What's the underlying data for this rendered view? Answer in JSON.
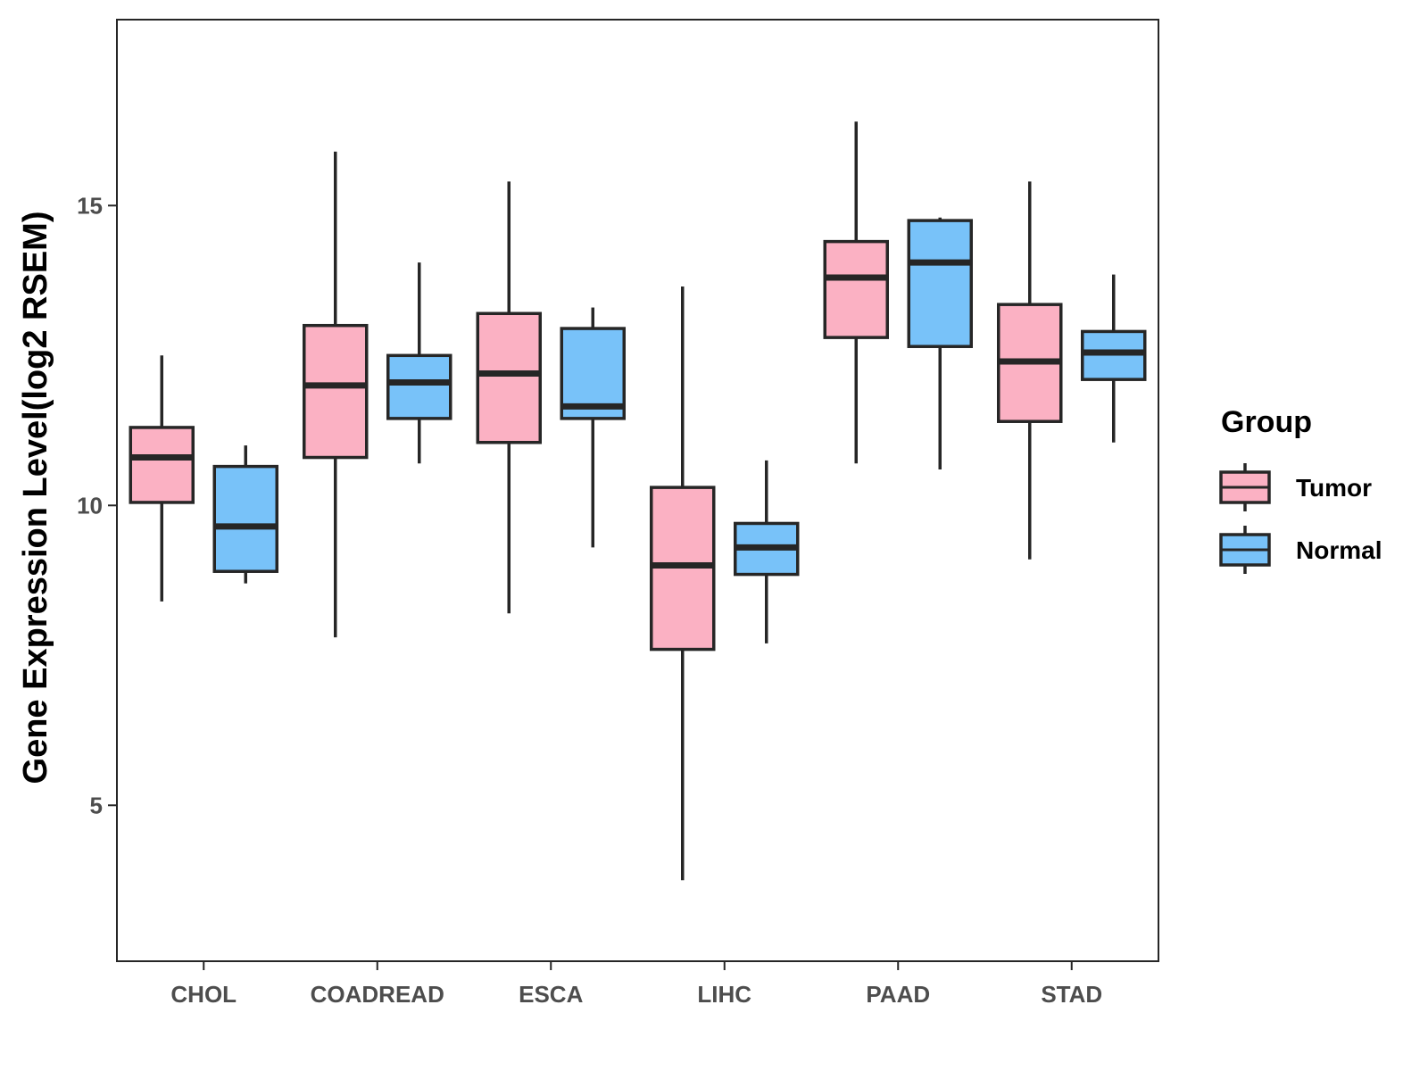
{
  "chart_data": {
    "type": "boxplot",
    "title": "",
    "xlabel": "",
    "ylabel": "Gene Expression Level(log2 RSEM)",
    "ylim": [
      2.4,
      18.1
    ],
    "yticks": [
      5,
      10,
      15
    ],
    "grid": false,
    "categories": [
      "CHOL",
      "COADREAD",
      "ESCA",
      "LIHC",
      "PAAD",
      "STAD"
    ],
    "legend": {
      "title": "Group",
      "position": "right",
      "entries": [
        "Tumor",
        "Normal"
      ]
    },
    "series": [
      {
        "name": "Tumor",
        "color": "#fbb1c3",
        "boxes": [
          {
            "category": "CHOL",
            "min": 8.4,
            "q1": 10.05,
            "median": 10.8,
            "q3": 11.3,
            "max": 12.5
          },
          {
            "category": "COADREAD",
            "min": 7.8,
            "q1": 10.8,
            "median": 12.0,
            "q3": 13.0,
            "max": 15.9
          },
          {
            "category": "ESCA",
            "min": 8.2,
            "q1": 11.05,
            "median": 12.2,
            "q3": 13.2,
            "max": 15.4
          },
          {
            "category": "LIHC",
            "min": 3.75,
            "q1": 7.6,
            "median": 9.0,
            "q3": 10.3,
            "max": 13.65
          },
          {
            "category": "PAAD",
            "min": 10.7,
            "q1": 12.8,
            "median": 13.8,
            "q3": 14.4,
            "max": 16.4
          },
          {
            "category": "STAD",
            "min": 9.1,
            "q1": 11.4,
            "median": 12.4,
            "q3": 13.35,
            "max": 15.4
          }
        ]
      },
      {
        "name": "Normal",
        "color": "#78c2f9",
        "boxes": [
          {
            "category": "CHOL",
            "min": 8.7,
            "q1": 8.9,
            "median": 9.65,
            "q3": 10.65,
            "max": 11.0
          },
          {
            "category": "COADREAD",
            "min": 10.7,
            "q1": 11.45,
            "median": 12.05,
            "q3": 12.5,
            "max": 14.05
          },
          {
            "category": "ESCA",
            "min": 9.3,
            "q1": 11.45,
            "median": 11.65,
            "q3": 12.95,
            "max": 13.3
          },
          {
            "category": "LIHC",
            "min": 7.7,
            "q1": 8.85,
            "median": 9.3,
            "q3": 9.7,
            "max": 10.75
          },
          {
            "category": "PAAD",
            "min": 10.6,
            "q1": 12.65,
            "median": 14.05,
            "q3": 14.75,
            "max": 14.8
          },
          {
            "category": "STAD",
            "min": 11.05,
            "q1": 12.1,
            "median": 12.55,
            "q3": 12.9,
            "max": 13.85
          }
        ]
      }
    ]
  }
}
